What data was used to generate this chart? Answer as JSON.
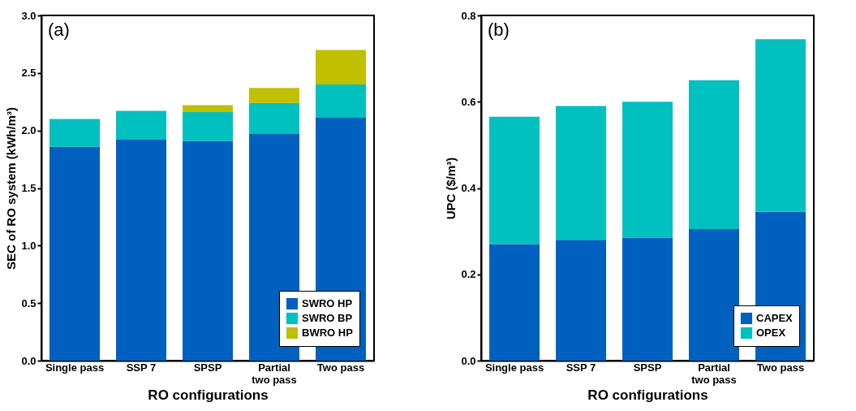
{
  "chart_data": [
    {
      "type": "bar",
      "stacked": true,
      "annotations": [
        "(a)"
      ],
      "xlabel": "RO configurations",
      "ylabel": "SEC of RO system (kWh/m³)",
      "categories": [
        "Single pass",
        "SSP 7",
        "SPSP",
        "Partial\ntwo pass",
        "Two pass"
      ],
      "series": [
        {
          "name": "SWRO HP",
          "color": "#0060c0",
          "values": [
            1.86,
            1.92,
            1.91,
            1.97,
            2.11
          ]
        },
        {
          "name": "SWRO BP",
          "color": "#00c0c0",
          "values": [
            0.24,
            0.25,
            0.25,
            0.27,
            0.29
          ]
        },
        {
          "name": "BWRO HP",
          "color": "#c0c000",
          "values": [
            null,
            null,
            0.06,
            0.13,
            0.3
          ]
        }
      ],
      "ylim": [
        0,
        3
      ],
      "yticks": [
        {
          "value": 0,
          "label": "0.0"
        },
        {
          "value": 0.5,
          "label": "0.5"
        },
        {
          "value": 1,
          "label": "1.0"
        },
        {
          "value": 1.5,
          "label": "1.5"
        },
        {
          "value": 2,
          "label": "2.0"
        },
        {
          "value": 2.5,
          "label": "2.5"
        },
        {
          "value": 3,
          "label": "3.0"
        }
      ],
      "grid": false,
      "legend": "bottom right"
    },
    {
      "type": "bar",
      "stacked": true,
      "annotations": [
        "(b)"
      ],
      "xlabel": "RO configurations",
      "ylabel": "UPC ($/m³)",
      "categories": [
        "Single pass",
        "SSP 7",
        "SPSP",
        "Partial\ntwo pass",
        "Two pass"
      ],
      "series": [
        {
          "name": "CAPEX",
          "color": "#0060c0",
          "values": [
            0.27,
            0.28,
            0.285,
            0.305,
            0.345
          ]
        },
        {
          "name": "OPEX",
          "color": "#00c0c0",
          "values": [
            0.295,
            0.31,
            0.315,
            0.345,
            0.4
          ]
        }
      ],
      "ylim": [
        0,
        0.8
      ],
      "yticks": [
        {
          "value": 0,
          "label": "0.0"
        },
        {
          "value": 0.2,
          "label": "0.2"
        },
        {
          "value": 0.4,
          "label": "0.4"
        },
        {
          "value": 0.6,
          "label": "0.6"
        },
        {
          "value": 0.8,
          "label": "0.8"
        }
      ],
      "grid": false,
      "legend": "bottom right"
    }
  ]
}
